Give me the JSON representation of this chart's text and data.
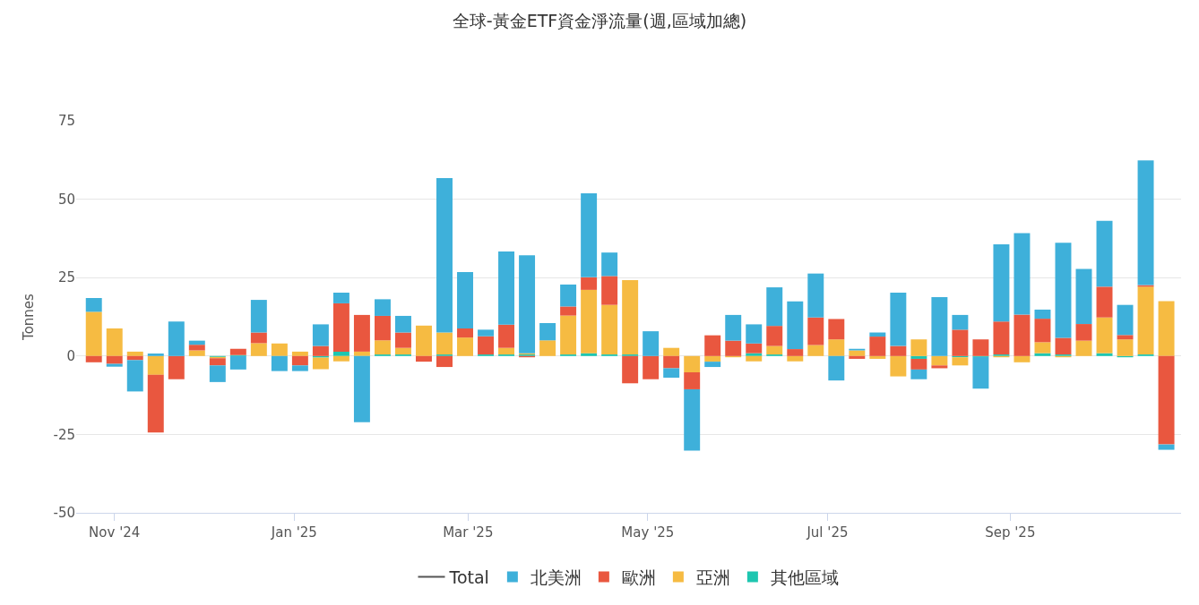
{
  "chart_data": {
    "type": "bar",
    "title": "全球-黃金ETF資金淨流量(週,區域加總)",
    "ylabel": "Tonnes",
    "stacked": true,
    "x": [
      "2024-10-25",
      "2024-11-01",
      "2024-11-08",
      "2024-11-15",
      "2024-11-22",
      "2024-11-29",
      "2024-12-06",
      "2024-12-13",
      "2024-12-20",
      "2024-12-27",
      "2025-01-03",
      "2025-01-10",
      "2025-01-17",
      "2025-01-24",
      "2025-01-31",
      "2025-02-07",
      "2025-02-14",
      "2025-02-21",
      "2025-02-28",
      "2025-03-07",
      "2025-03-14",
      "2025-03-21",
      "2025-03-28",
      "2025-04-04",
      "2025-04-11",
      "2025-04-18",
      "2025-04-25",
      "2025-05-02",
      "2025-05-09",
      "2025-05-16",
      "2025-05-23",
      "2025-05-30",
      "2025-06-06",
      "2025-06-13",
      "2025-06-20",
      "2025-06-27",
      "2025-07-04",
      "2025-07-11",
      "2025-07-18",
      "2025-07-25",
      "2025-08-01",
      "2025-08-08",
      "2025-08-15",
      "2025-08-22",
      "2025-08-29",
      "2025-09-05",
      "2025-09-12",
      "2025-09-19",
      "2025-09-26",
      "2025-10-03",
      "2025-10-10",
      "2025-10-17",
      "2025-10-24"
    ],
    "series": [
      {
        "name": "其他區域",
        "color": "#1ec6b0",
        "values": [
          0,
          0,
          0,
          0,
          0,
          0,
          -0.3,
          0.3,
          0,
          0,
          0,
          -0.5,
          1.4,
          0,
          0.5,
          0.5,
          0,
          0.5,
          0,
          0.5,
          0.5,
          0.5,
          0,
          0.5,
          0.9,
          0.5,
          0.5,
          0,
          0,
          0,
          0,
          0,
          0.9,
          0.5,
          0,
          0,
          0,
          0,
          0,
          0,
          -0.9,
          0,
          -0.4,
          -0.3,
          0.5,
          0,
          0.9,
          0.5,
          0,
          0.9,
          -0.4,
          0.5,
          0
        ]
      },
      {
        "name": "亞洲",
        "color": "#f6bb42",
        "values": [
          14.1,
          8.8,
          1.4,
          -6.0,
          0,
          1.8,
          -0.4,
          0,
          4.1,
          4.0,
          1.4,
          -3.7,
          -1.7,
          1.4,
          4.5,
          2.1,
          9.7,
          7.0,
          5.9,
          0,
          2.1,
          0.4,
          5.0,
          12.4,
          20.2,
          15.8,
          23.7,
          0,
          2.6,
          -5.2,
          -1.8,
          -0.4,
          -1.7,
          2.7,
          -1.7,
          3.5,
          5.3,
          1.8,
          -0.9,
          -6.5,
          5.3,
          -3.0,
          -2.6,
          0,
          -0.4,
          -2.0,
          3.5,
          -0.4,
          4.9,
          11.4,
          5.3,
          21.6,
          17.5
        ]
      },
      {
        "name": "歐洲",
        "color": "#e9573f",
        "values": [
          -2.0,
          -2.5,
          -1.3,
          -18.4,
          -7.4,
          1.8,
          -2.3,
          2.0,
          3.4,
          0,
          -3.0,
          3.2,
          15.4,
          11.7,
          7.8,
          4.9,
          -1.8,
          -3.5,
          2.9,
          5.8,
          7.4,
          -0.4,
          0,
          2.9,
          4.0,
          9.2,
          -8.7,
          -7.4,
          -3.9,
          -5.4,
          6.6,
          4.9,
          3.1,
          6.4,
          2.2,
          8.8,
          6.5,
          -0.9,
          6.2,
          3.2,
          -3.4,
          -0.9,
          8.4,
          5.3,
          10.5,
          13.2,
          7.5,
          5.3,
          5.3,
          9.8,
          1.4,
          0.5,
          -28.2
        ]
      },
      {
        "name": "北美洲",
        "color": "#3eb0da",
        "values": [
          4.4,
          -0.9,
          -10,
          0.8,
          11,
          1.3,
          -5.3,
          -4.3,
          10.4,
          -4.8,
          -1.8,
          6.9,
          3.4,
          -21.1,
          5.3,
          5.3,
          0,
          49.2,
          18.0,
          2.1,
          23.3,
          31.2,
          5.5,
          7.0,
          26.8,
          7.5,
          0,
          7.9,
          -3.0,
          -19.6,
          -1.7,
          8.2,
          6.1,
          12.3,
          15.2,
          14.0,
          -7.8,
          0.5,
          1.3,
          17.0,
          -3.1,
          18.8,
          4.7,
          -10.1,
          24.6,
          26.0,
          2.9,
          30.3,
          17.6,
          21.0,
          9.6,
          39.8,
          -1.7
        ]
      },
      {
        "name": "Total",
        "type": "line",
        "color": "#555555",
        "values": [
          null,
          null,
          null,
          null,
          null,
          null,
          null,
          null,
          null,
          null,
          null,
          null,
          null,
          null,
          null,
          null,
          null,
          null,
          null,
          null,
          null,
          null,
          null,
          null,
          null,
          null,
          null,
          null,
          null,
          null,
          null,
          null,
          null,
          null,
          null,
          null,
          null,
          null,
          null,
          null,
          null,
          null,
          null,
          null,
          null,
          null,
          null,
          null,
          null,
          null,
          null,
          null,
          null
        ]
      }
    ],
    "xlim": [
      "2024-10-19",
      "2025-10-29"
    ],
    "xticks": [
      {
        "value": "2024-11-01",
        "label": "Nov '24"
      },
      {
        "value": "2025-01-01",
        "label": "Jan '25"
      },
      {
        "value": "2025-03-01",
        "label": "Mar '25"
      },
      {
        "value": "2025-05-01",
        "label": "May '25"
      },
      {
        "value": "2025-07-01",
        "label": "Jul '25"
      },
      {
        "value": "2025-09-01",
        "label": "Sep '25"
      }
    ],
    "ylim": [
      -50,
      75
    ],
    "yticks": [
      -50,
      -25,
      0,
      25,
      50,
      75
    ],
    "grid": "y",
    "legend": "bottom"
  }
}
